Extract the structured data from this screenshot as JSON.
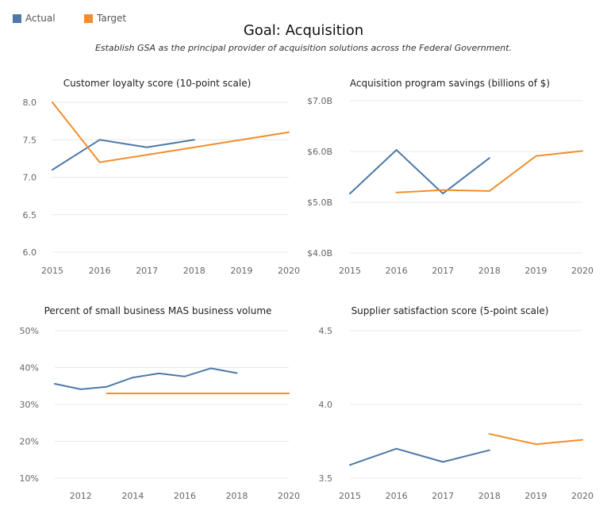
{
  "legend": {
    "actual_label": "Actual",
    "target_label": "Target"
  },
  "colors": {
    "actual": "#4e79a7",
    "target": "#f28e2b",
    "grid": "#e8e8e8",
    "tick_text": "#666666"
  },
  "header": {
    "title": "Goal: Acquisition",
    "subtitle": "Establish GSA as the principal provider of acquisition solutions across the Federal Government."
  },
  "chart_data": [
    {
      "type": "line",
      "title": "Customer loyalty score (10-point scale)",
      "x_ticks": [
        2015,
        2016,
        2017,
        2018,
        2019,
        2020
      ],
      "xlim": [
        2015,
        2020
      ],
      "y_ticks": [
        6.0,
        6.5,
        7.0,
        7.5,
        8.0
      ],
      "y_tick_labels": [
        "6.0",
        "6.5",
        "7.0",
        "7.5",
        "8.0"
      ],
      "ylim": [
        6.0,
        8.0
      ],
      "grid": true,
      "legend_position": "top-left",
      "series": [
        {
          "name": "Actual",
          "x": [
            2015,
            2016,
            2017,
            2018
          ],
          "y": [
            7.1,
            7.5,
            7.4,
            7.5
          ]
        },
        {
          "name": "Target",
          "x": [
            2015,
            2016,
            2017,
            2018,
            2019,
            2020
          ],
          "y": [
            8.0,
            7.2,
            7.3,
            7.4,
            7.5,
            7.6
          ]
        }
      ]
    },
    {
      "type": "line",
      "title": "Acquisition program savings (billions of $)",
      "x_ticks": [
        2015,
        2016,
        2017,
        2018,
        2019,
        2020
      ],
      "xlim": [
        2015,
        2020
      ],
      "y_ticks": [
        4.0,
        5.0,
        6.0,
        7.0
      ],
      "y_tick_labels": [
        "$4.0B",
        "$5.0B",
        "$6.0B",
        "$7.0B"
      ],
      "ylim": [
        4.0,
        7.0
      ],
      "grid": true,
      "series": [
        {
          "name": "Actual",
          "x": [
            2015,
            2016,
            2017,
            2018
          ],
          "y": [
            5.17,
            6.03,
            5.17,
            5.87
          ]
        },
        {
          "name": "Target",
          "x": [
            2016,
            2017,
            2018,
            2019,
            2020
          ],
          "y": [
            5.19,
            5.24,
            5.22,
            5.91,
            6.01
          ]
        }
      ]
    },
    {
      "type": "line",
      "title": "Percent of small business MAS business volume",
      "x_ticks": [
        2012,
        2014,
        2016,
        2018,
        2020
      ],
      "xlim": [
        2011,
        2020
      ],
      "y_ticks": [
        10,
        20,
        30,
        40,
        50
      ],
      "y_tick_labels": [
        "10%",
        "20%",
        "30%",
        "40%",
        "50%"
      ],
      "ylim": [
        10,
        50
      ],
      "grid": true,
      "series": [
        {
          "name": "Actual",
          "x": [
            2011,
            2012,
            2013,
            2014,
            2015,
            2016,
            2017,
            2018
          ],
          "y": [
            35.6,
            34.1,
            34.8,
            37.3,
            38.4,
            37.6,
            39.8,
            38.5
          ]
        },
        {
          "name": "Target",
          "x": [
            2013,
            2014,
            2015,
            2016,
            2017,
            2018,
            2019,
            2020
          ],
          "y": [
            33,
            33,
            33,
            33,
            33,
            33,
            33,
            33
          ]
        }
      ]
    },
    {
      "type": "line",
      "title": "Supplier satisfaction score (5-point scale)",
      "x_ticks": [
        2015,
        2016,
        2017,
        2018,
        2019,
        2020
      ],
      "xlim": [
        2015,
        2020
      ],
      "y_ticks": [
        3.5,
        4.0,
        4.5
      ],
      "y_tick_labels": [
        "3.5",
        "4.0",
        "4.5"
      ],
      "ylim": [
        3.5,
        4.5
      ],
      "grid": true,
      "series": [
        {
          "name": "Actual",
          "x": [
            2015,
            2016,
            2017,
            2018
          ],
          "y": [
            3.59,
            3.7,
            3.61,
            3.69
          ]
        },
        {
          "name": "Target",
          "x": [
            2018,
            2019,
            2020
          ],
          "y": [
            3.8,
            3.73,
            3.76
          ]
        }
      ]
    }
  ]
}
